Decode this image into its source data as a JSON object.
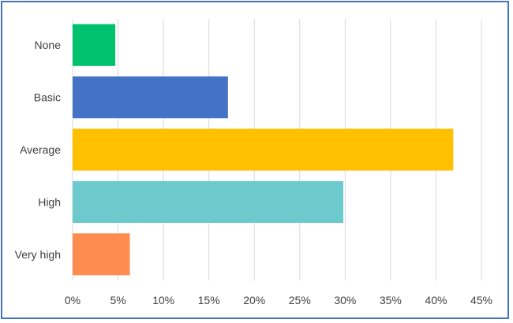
{
  "chart_data": {
    "type": "bar",
    "orientation": "horizontal",
    "categories": [
      "None",
      "Basic",
      "Average",
      "High",
      "Very high"
    ],
    "values": [
      4.7,
      17.1,
      41.9,
      29.8,
      6.3
    ],
    "colors": [
      "#00C16E",
      "#4472C4",
      "#FFC000",
      "#6CC9CC",
      "#FF8C4F"
    ],
    "xlim": [
      0,
      45
    ],
    "xticks": [
      0,
      5,
      10,
      15,
      20,
      25,
      30,
      35,
      40,
      45
    ],
    "tick_labels": [
      "0%",
      "5%",
      "10%",
      "15%",
      "20%",
      "25%",
      "30%",
      "35%",
      "40%",
      "45%"
    ],
    "grid": true,
    "title": "",
    "xlabel": "",
    "ylabel": ""
  }
}
